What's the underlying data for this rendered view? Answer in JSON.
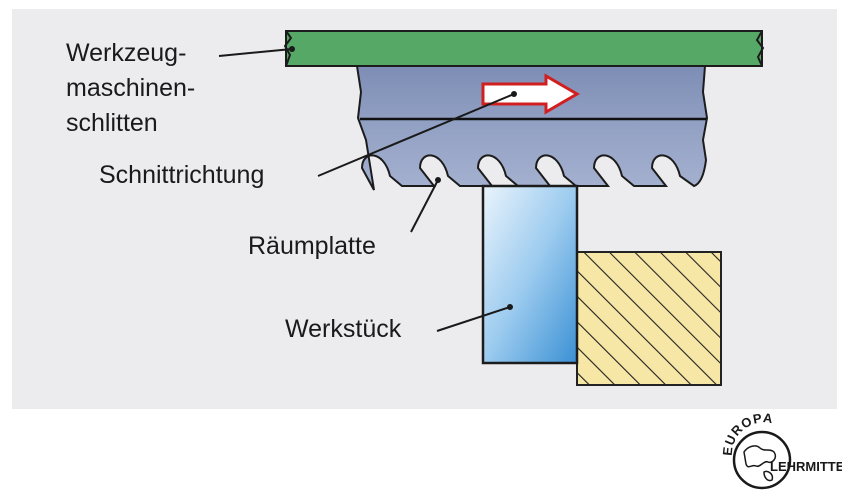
{
  "labels": {
    "slide": "Werkzeug-\nmaschinen-\nschlitten",
    "slide_lines": [
      "Werkzeug-",
      "maschinen-",
      "schlitten"
    ],
    "cutting_direction": "Schnittrichtung",
    "broach_plate": "Räumplatte",
    "workpiece": "Werkstück"
  },
  "logo": {
    "top_text": "EUROPA",
    "bottom_text": "LEHRMITTEL"
  },
  "colors": {
    "slide": "#55a865",
    "broach": "#8e9cbe",
    "workpiece_light": "#e4f1fb",
    "workpiece_dark": "#3f94d6",
    "fixture": "#f7e7a6",
    "arrow": "#d11f1f"
  }
}
